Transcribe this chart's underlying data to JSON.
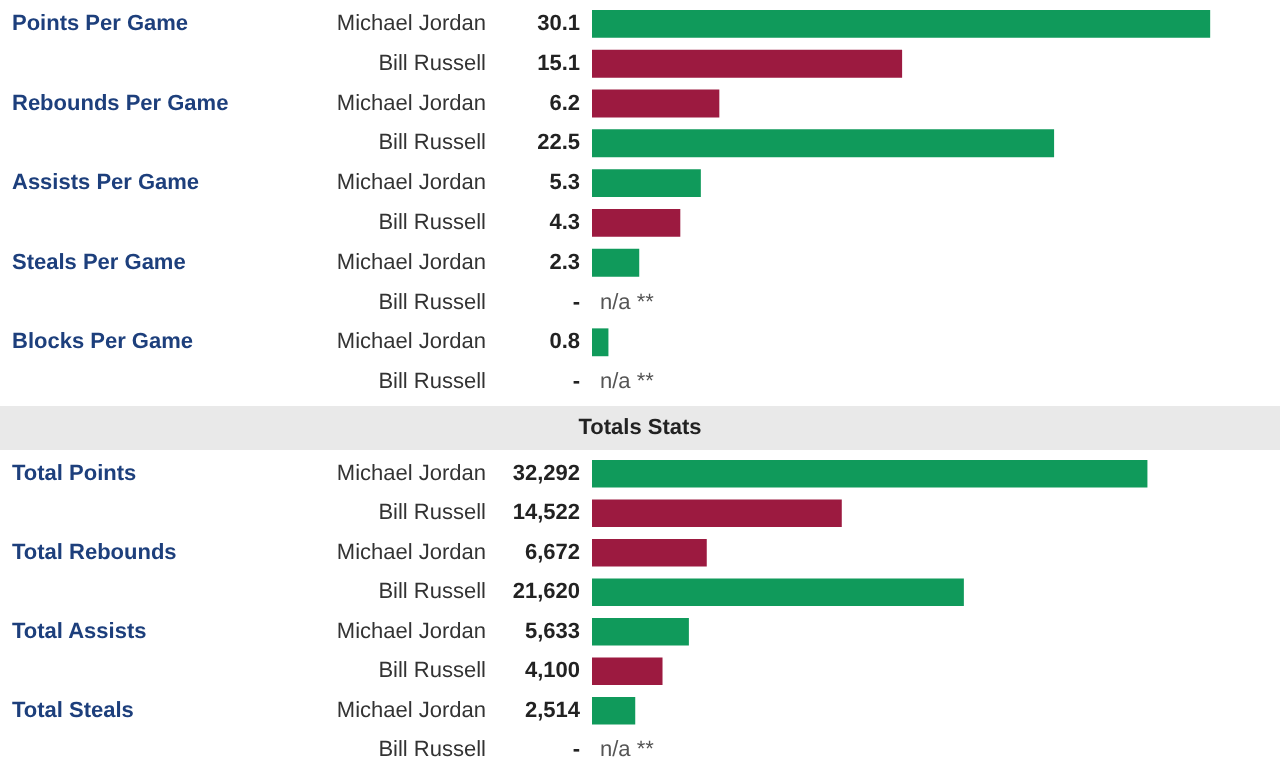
{
  "chart_data": [
    {
      "type": "bar",
      "orientation": "horizontal",
      "categories": [
        "Michael Jordan",
        "Bill Russell",
        "Michael Jordan",
        "Bill Russell",
        "Michael Jordan",
        "Bill Russell",
        "Michael Jordan",
        "Bill Russell",
        "Michael Jordan",
        "Bill Russell"
      ],
      "xlim": [
        0,
        33.5
      ],
      "values": [
        30.1,
        15.1,
        6.2,
        22.5,
        5.3,
        4.3,
        2.3,
        null,
        0.8,
        null
      ],
      "colors": [
        "#109a5b",
        "#9c1a40",
        "#9c1a40",
        "#109a5b",
        "#109a5b",
        "#9c1a40",
        "#109a5b",
        null,
        "#109a5b",
        null
      ],
      "value_labels": [
        "30.1",
        "15.1",
        "6.2",
        "22.5",
        "5.3",
        "4.3",
        "2.3",
        "-",
        "0.8",
        "-"
      ],
      "annotations": [
        "Points Per Game",
        "Rebounds Per Game",
        "Assists Per Game",
        "Steals Per Game",
        "Blocks Per Game",
        "n/a **",
        "n/a **"
      ]
    },
    {
      "type": "bar",
      "orientation": "horizontal",
      "title": "Totals Stats",
      "categories": [
        "Michael Jordan",
        "Bill Russell",
        "Michael Jordan",
        "Bill Russell",
        "Michael Jordan",
        "Bill Russell",
        "Michael Jordan",
        "Bill Russell"
      ],
      "xlim": [
        0,
        40000
      ],
      "values": [
        32292,
        14522,
        6672,
        21620,
        5633,
        4100,
        2514,
        null
      ],
      "colors": [
        "#109a5b",
        "#9c1a40",
        "#9c1a40",
        "#109a5b",
        "#109a5b",
        "#9c1a40",
        "#109a5b",
        null
      ],
      "value_labels": [
        "32,292",
        "14,522",
        "6,672",
        "21,620",
        "5,633",
        "4,100",
        "2,514",
        "-"
      ],
      "annotations": [
        "Total Points",
        "Total Rebounds",
        "Total Assists",
        "Total Steals",
        "n/a **"
      ]
    }
  ]
}
